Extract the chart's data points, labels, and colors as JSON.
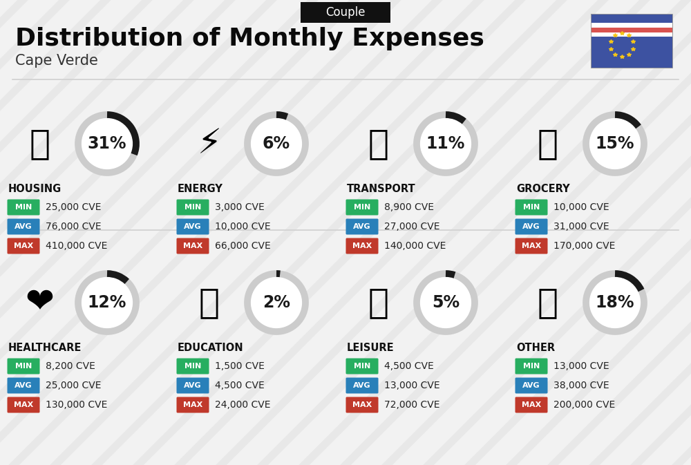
{
  "title": "Distribution of Monthly Expenses",
  "subtitle": "Cape Verde",
  "tag": "Couple",
  "background_color": "#f2f2f2",
  "categories": [
    {
      "name": "HOUSING",
      "pct": 31,
      "min": "25,000 CVE",
      "avg": "76,000 CVE",
      "max": "410,000 CVE",
      "row": 0,
      "col": 0
    },
    {
      "name": "ENERGY",
      "pct": 6,
      "min": "3,000 CVE",
      "avg": "10,000 CVE",
      "max": "66,000 CVE",
      "row": 0,
      "col": 1
    },
    {
      "name": "TRANSPORT",
      "pct": 11,
      "min": "8,900 CVE",
      "avg": "27,000 CVE",
      "max": "140,000 CVE",
      "row": 0,
      "col": 2
    },
    {
      "name": "GROCERY",
      "pct": 15,
      "min": "10,000 CVE",
      "avg": "31,000 CVE",
      "max": "170,000 CVE",
      "row": 0,
      "col": 3
    },
    {
      "name": "HEALTHCARE",
      "pct": 12,
      "min": "8,200 CVE",
      "avg": "25,000 CVE",
      "max": "130,000 CVE",
      "row": 1,
      "col": 0
    },
    {
      "name": "EDUCATION",
      "pct": 2,
      "min": "1,500 CVE",
      "avg": "4,500 CVE",
      "max": "24,000 CVE",
      "row": 1,
      "col": 1
    },
    {
      "name": "LEISURE",
      "pct": 5,
      "min": "4,500 CVE",
      "avg": "13,000 CVE",
      "max": "72,000 CVE",
      "row": 1,
      "col": 2
    },
    {
      "name": "OTHER",
      "pct": 18,
      "min": "13,000 CVE",
      "avg": "38,000 CVE",
      "max": "200,000 CVE",
      "row": 1,
      "col": 3
    }
  ],
  "min_color": "#27ae60",
  "avg_color": "#2980b9",
  "max_color": "#c0392b",
  "label_color": "#ffffff",
  "arc_dark_color": "#1a1a1a",
  "arc_light_color": "#cccccc",
  "title_fontsize": 26,
  "subtitle_fontsize": 15,
  "tag_fontsize": 12,
  "cat_fontsize": 10.5,
  "val_fontsize": 10,
  "pct_fontsize": 17,
  "flag_colors": {
    "blue": "#3d52a1",
    "white": "#ffffff",
    "red": "#d9534f",
    "star": "#f5c518"
  },
  "icons": [
    "housing",
    "energy",
    "transport",
    "grocery",
    "healthcare",
    "education",
    "leisure",
    "other"
  ]
}
